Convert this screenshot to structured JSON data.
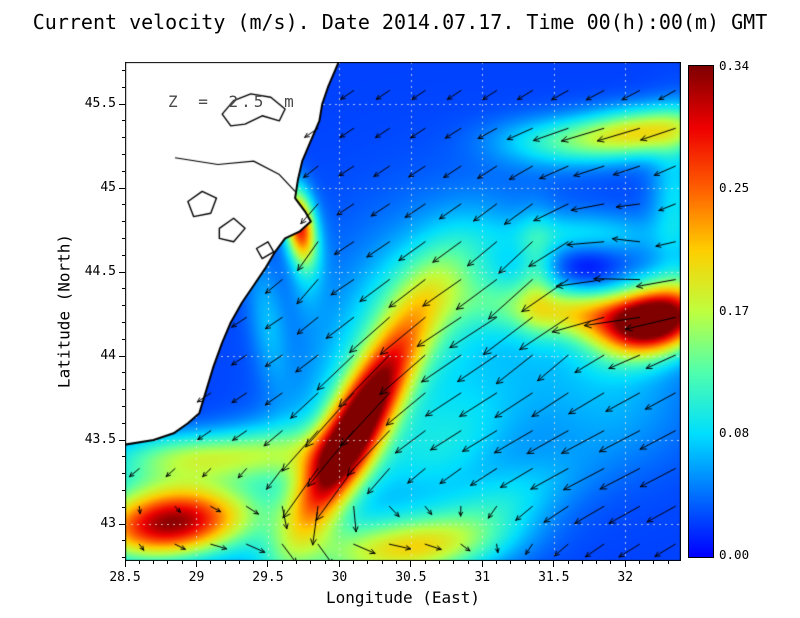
{
  "chart_data": {
    "type": "heatmap",
    "title": "Current velocity (m/s). Date 2014.07.17. Time 00(h):00(m) GMT",
    "annotation": "Z = 2.5 m",
    "xlabel": "Longitude (East)",
    "ylabel": "Latitude (North)",
    "units": "m/s",
    "x_range": [
      28.5,
      32.39
    ],
    "y_range": [
      42.78,
      45.75
    ],
    "x_ticks": {
      "values": [
        28.5,
        29,
        29.5,
        30,
        30.5,
        31,
        31.5,
        32
      ],
      "labels": [
        "28.5",
        "29",
        "29.5",
        "30",
        "30.5",
        "31",
        "31.5",
        "32"
      ],
      "minor_step": 0.1
    },
    "y_ticks": {
      "values": [
        43,
        43.5,
        44,
        44.5,
        45,
        45.5
      ],
      "labels": [
        "43",
        "43.5",
        "44",
        "44.5",
        "45",
        "45.5"
      ],
      "minor_step": 0.1
    },
    "grid_style": "dotted",
    "background": "#ffffff",
    "land_color": "#ffffff",
    "coast_color": "#000000",
    "arrow_color": "#000000",
    "colorbar": {
      "min": 0,
      "max": 0.34,
      "tick_labels": [
        "0.00",
        "0.08",
        "0.17",
        "0.25",
        "0.34"
      ],
      "tick_values": [
        0,
        0.085,
        0.17,
        0.255,
        0.34
      ],
      "position": "right"
    },
    "colormap_stops": [
      [
        0.0,
        "#0000ff"
      ],
      [
        0.125,
        "#0070ff"
      ],
      [
        0.25,
        "#00dfff"
      ],
      [
        0.375,
        "#50ffaf"
      ],
      [
        0.5,
        "#bfff40"
      ],
      [
        0.625,
        "#ffcf00"
      ],
      [
        0.75,
        "#ff6000"
      ],
      [
        0.875,
        "#ef0000"
      ],
      [
        1.0,
        "#800000"
      ]
    ],
    "velocity_field": {
      "base": 0.025,
      "blobs": [
        [
          28.82,
          43.0,
          0.3,
          0.38,
          0.14,
          5
        ],
        [
          28.78,
          43.22,
          0.05,
          0.4,
          0.12,
          0
        ],
        [
          30.1,
          43.55,
          0.33,
          0.48,
          0.13,
          57
        ],
        [
          30.06,
          43.55,
          0.06,
          0.68,
          0.3,
          57
        ],
        [
          30.65,
          44.4,
          0.07,
          0.35,
          0.2,
          40
        ],
        [
          30.45,
          42.85,
          0.16,
          0.45,
          0.13,
          5
        ],
        [
          31.1,
          43.1,
          0.06,
          0.4,
          0.15,
          20
        ],
        [
          30.75,
          43.45,
          0.05,
          0.35,
          0.2,
          30
        ],
        [
          29.0,
          43.4,
          0.12,
          0.42,
          0.1,
          0
        ],
        [
          29.58,
          43.45,
          0.06,
          0.3,
          0.12,
          0
        ],
        [
          29.72,
          44.78,
          0.24,
          0.07,
          0.15,
          10
        ],
        [
          29.78,
          44.55,
          0.04,
          0.09,
          0.22,
          0
        ],
        [
          32.22,
          44.22,
          0.3,
          0.26,
          0.14,
          15
        ],
        [
          31.75,
          44.25,
          0.15,
          0.45,
          0.11,
          175
        ],
        [
          31.72,
          44.52,
          -0.045,
          0.18,
          0.14,
          0
        ],
        [
          31.72,
          44.72,
          0.06,
          0.35,
          0.09,
          0
        ],
        [
          31.38,
          44.5,
          0.05,
          0.09,
          0.22,
          0
        ],
        [
          32.1,
          45.33,
          0.17,
          0.38,
          0.1,
          5
        ],
        [
          31.45,
          45.28,
          0.05,
          0.3,
          0.1,
          0
        ],
        [
          32.35,
          44.92,
          0.06,
          0.12,
          0.3,
          0
        ],
        [
          30.9,
          44.2,
          0.045,
          0.7,
          0.5,
          0
        ],
        [
          31.95,
          43.75,
          0.035,
          0.4,
          0.3,
          0
        ],
        [
          29.5,
          44.2,
          0.04,
          0.09,
          0.28,
          10
        ]
      ]
    },
    "flow_field": {
      "base_uv": [
        -0.06,
        -0.04
      ],
      "jets": [
        [
          30.1,
          43.55,
          -0.165,
          -0.25,
          0.55,
          0.2,
          57
        ],
        [
          29.9,
          42.95,
          0.2,
          0.03,
          1.0,
          0.2,
          0
        ],
        [
          31.95,
          44.3,
          -0.22,
          -0.03,
          0.55,
          0.16,
          0
        ],
        [
          29.72,
          44.78,
          -0.04,
          -0.2,
          0.09,
          0.25,
          10
        ],
        [
          32.0,
          45.33,
          -0.14,
          -0.02,
          0.45,
          0.13,
          0
        ],
        [
          31.0,
          44.1,
          -0.11,
          -0.07,
          0.75,
          0.55,
          0
        ],
        [
          32.0,
          43.4,
          -0.12,
          -0.05,
          0.6,
          0.4,
          0
        ]
      ],
      "vortices": [
        [
          31.72,
          44.5,
          0.09,
          0.3
        ]
      ]
    },
    "arrow_grid": {
      "lon0": 28.6,
      "dlon": 0.25,
      "nx": 16,
      "lat0": 42.88,
      "dlat": 0.225,
      "ny": 13,
      "scale": 210,
      "max_len": 72,
      "min_len": 7
    },
    "coastline": [
      [
        28.48,
        45.8
      ],
      [
        30.02,
        45.8
      ],
      [
        29.97,
        45.7
      ],
      [
        29.92,
        45.6
      ],
      [
        29.88,
        45.5
      ],
      [
        29.86,
        45.4
      ],
      [
        29.8,
        45.28
      ],
      [
        29.74,
        45.16
      ],
      [
        29.71,
        45.05
      ],
      [
        29.69,
        44.94
      ],
      [
        29.76,
        44.86
      ],
      [
        29.8,
        44.8
      ],
      [
        29.72,
        44.74
      ],
      [
        29.62,
        44.7
      ],
      [
        29.55,
        44.62
      ],
      [
        29.48,
        44.52
      ],
      [
        29.4,
        44.42
      ],
      [
        29.32,
        44.32
      ],
      [
        29.24,
        44.2
      ],
      [
        29.18,
        44.08
      ],
      [
        29.12,
        43.94
      ],
      [
        29.07,
        43.8
      ],
      [
        29.02,
        43.66
      ],
      [
        28.94,
        43.6
      ],
      [
        28.84,
        43.54
      ],
      [
        28.7,
        43.5
      ],
      [
        28.48,
        43.47
      ]
    ],
    "lakes": [
      [
        [
          29.18,
          45.44
        ],
        [
          29.26,
          45.52
        ],
        [
          29.38,
          45.56
        ],
        [
          29.52,
          45.54
        ],
        [
          29.62,
          45.47
        ],
        [
          29.58,
          45.4
        ],
        [
          29.46,
          45.43
        ],
        [
          29.34,
          45.38
        ],
        [
          29.24,
          45.37
        ]
      ],
      [
        [
          28.94,
          44.92
        ],
        [
          29.04,
          44.98
        ],
        [
          29.14,
          44.94
        ],
        [
          29.1,
          44.85
        ],
        [
          28.98,
          44.83
        ]
      ],
      [
        [
          29.16,
          44.76
        ],
        [
          29.26,
          44.82
        ],
        [
          29.34,
          44.76
        ],
        [
          29.26,
          44.68
        ],
        [
          29.16,
          44.7
        ]
      ],
      [
        [
          29.42,
          44.64
        ],
        [
          29.5,
          44.68
        ],
        [
          29.54,
          44.62
        ],
        [
          29.46,
          44.58
        ]
      ]
    ],
    "rivers": [
      [
        [
          28.85,
          45.18
        ],
        [
          29.15,
          45.14
        ],
        [
          29.4,
          45.16
        ],
        [
          29.58,
          45.08
        ],
        [
          29.69,
          44.98
        ]
      ]
    ]
  }
}
